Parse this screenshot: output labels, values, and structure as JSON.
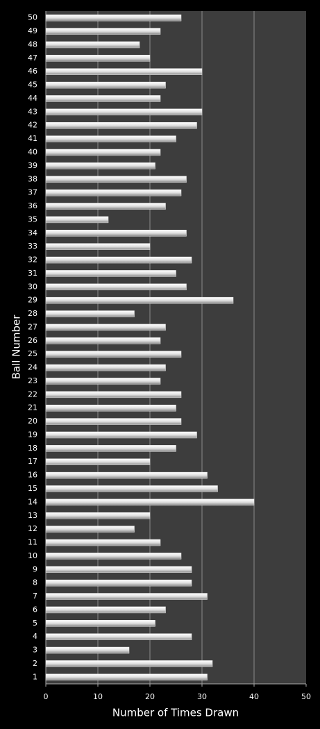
{
  "chart_data": {
    "type": "bar",
    "orientation": "horizontal",
    "x_label": "Number of Times Drawn",
    "y_label": "Ball Number",
    "categories": [
      "1",
      "2",
      "3",
      "4",
      "5",
      "6",
      "7",
      "8",
      "9",
      "10",
      "11",
      "12",
      "13",
      "14",
      "15",
      "16",
      "17",
      "18",
      "19",
      "20",
      "21",
      "22",
      "23",
      "24",
      "25",
      "26",
      "27",
      "28",
      "29",
      "30",
      "31",
      "32",
      "33",
      "34",
      "35",
      "36",
      "37",
      "38",
      "39",
      "40",
      "41",
      "42",
      "43",
      "44",
      "45",
      "46",
      "47",
      "48",
      "49",
      "50"
    ],
    "values": [
      31,
      32,
      16,
      28,
      21,
      23,
      31,
      28,
      28,
      26,
      22,
      17,
      20,
      40,
      33,
      31,
      20,
      25,
      29,
      26,
      25,
      26,
      22,
      23,
      26,
      22,
      23,
      17,
      36,
      27,
      25,
      28,
      20,
      27,
      12,
      23,
      26,
      27,
      21,
      22,
      25,
      29,
      30,
      22,
      23,
      30,
      20,
      18,
      22,
      26
    ],
    "color": "#e8e8e8",
    "xlim": [
      0,
      50
    ],
    "xticks": [
      0,
      10,
      20,
      30,
      40,
      50
    ],
    "grid": true
  }
}
